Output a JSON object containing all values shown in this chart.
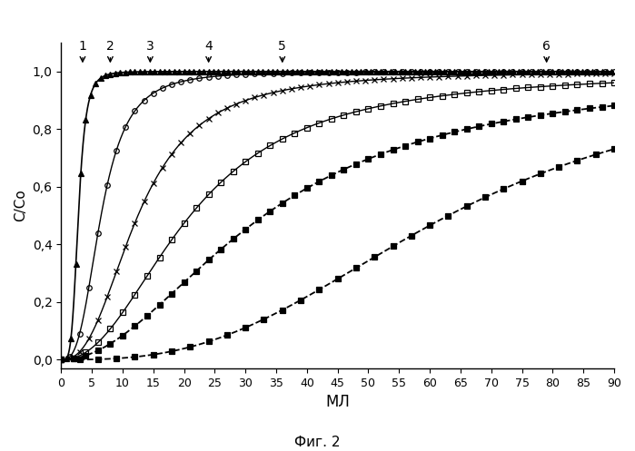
{
  "title": "",
  "xlabel": "МЛ",
  "ylabel": "C/Co",
  "caption": "Фиг. 2",
  "xlim": [
    0,
    90
  ],
  "ylim": [
    -0.03,
    1.1
  ],
  "yticks": [
    0.0,
    0.2,
    0.4,
    0.6,
    0.8,
    1.0
  ],
  "ytick_labels": [
    "0,0",
    "0,2",
    "0,4",
    "0,6",
    "0,8",
    "1,0"
  ],
  "xticks": [
    0,
    5,
    10,
    15,
    20,
    25,
    30,
    35,
    40,
    45,
    50,
    55,
    60,
    65,
    70,
    75,
    80,
    85,
    90
  ],
  "curves": [
    {
      "label": "1",
      "ec50": 2.8,
      "hill": 4.5,
      "marker": "^",
      "markersize": 5,
      "fillstyle": "full",
      "linestyle": "-",
      "linewidth": 1.2,
      "marker_every": 0.8
    },
    {
      "label": "2",
      "ec50": 6.5,
      "hill": 3.0,
      "marker": "o",
      "markersize": 4,
      "fillstyle": "none",
      "linestyle": "-",
      "linewidth": 1.0,
      "marker_every": 1.5
    },
    {
      "label": "3",
      "ec50": 12.5,
      "hill": 2.5,
      "marker": "x",
      "markersize": 5,
      "fillstyle": "full",
      "linestyle": "-",
      "linewidth": 1.0,
      "marker_every": 1.5
    },
    {
      "label": "4",
      "ec50": 21.0,
      "hill": 2.2,
      "marker": "s",
      "markersize": 4,
      "fillstyle": "none",
      "linestyle": "-",
      "linewidth": 1.0,
      "marker_every": 2.0
    },
    {
      "label": "5",
      "ec50": 33.0,
      "hill": 2.0,
      "marker": "s",
      "markersize": 4,
      "fillstyle": "full",
      "linestyle": "--",
      "linewidth": 1.3,
      "marker_every": 2.0
    },
    {
      "label": "6",
      "ec50": 63.0,
      "hill": 2.8,
      "marker": "s",
      "markersize": 4,
      "fillstyle": "full",
      "linestyle": "--",
      "linewidth": 1.3,
      "marker_every": 3.0
    }
  ],
  "arrow_positions": [
    {
      "label": "1",
      "x_data": 3.5
    },
    {
      "label": "2",
      "x_data": 8.0
    },
    {
      "label": "3",
      "x_data": 14.5
    },
    {
      "label": "4",
      "x_data": 24.0
    },
    {
      "label": "5",
      "x_data": 36.0
    },
    {
      "label": "6",
      "x_data": 79.0
    }
  ],
  "background_color": "white",
  "color": "black"
}
